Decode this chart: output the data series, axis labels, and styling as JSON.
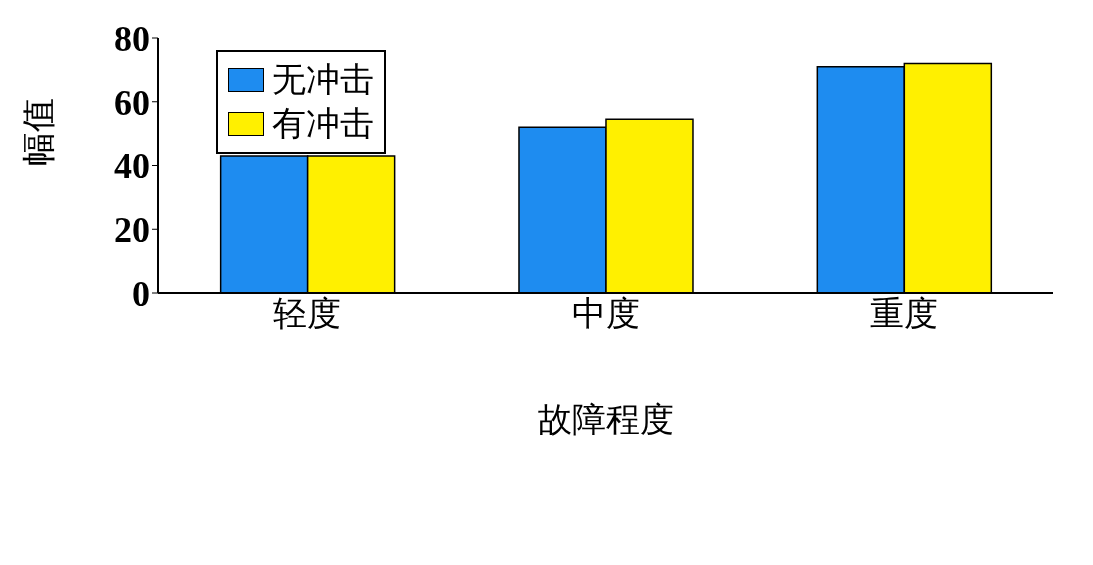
{
  "chart_data": {
    "type": "bar",
    "xlabel": "故障程度",
    "ylabel": "幅值",
    "categories": [
      "轻度",
      "中度",
      "重度"
    ],
    "series": [
      {
        "name": "无冲击",
        "color": "#1e8cf0",
        "values": [
          43,
          52,
          71
        ]
      },
      {
        "name": "有冲击",
        "color": "#fff000",
        "values": [
          43,
          54.5,
          72
        ]
      }
    ],
    "ylim": [
      0,
      80
    ],
    "yticks": [
      0,
      20,
      40,
      60,
      80
    ],
    "grid": false,
    "legend": "top left"
  }
}
